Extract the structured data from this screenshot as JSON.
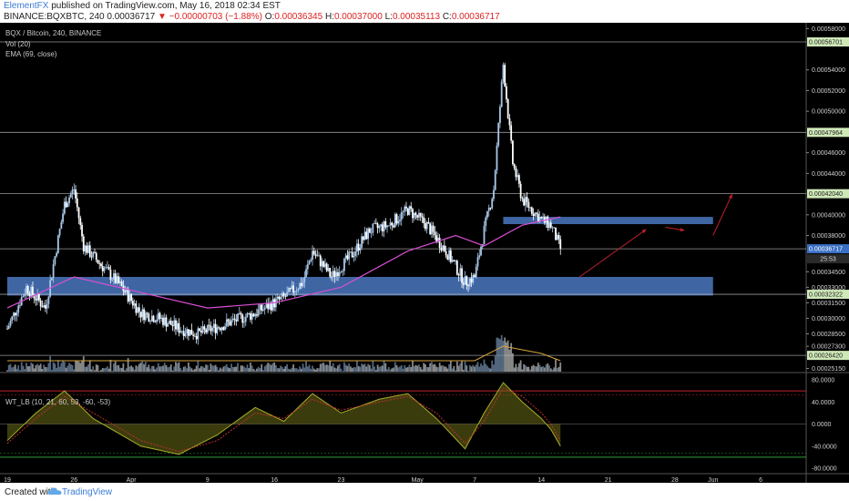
{
  "header": {
    "author": "ElementFX",
    "published": "published on TradingView.com, May 16, 2018 02:34 EST",
    "symbol": "BINANCE:BQXBTC, 240",
    "last": "0.00036717",
    "change": "−0.00000703 (−1.88%)",
    "ohlc": {
      "o_label": "O:",
      "o": "0.00036345",
      "h_label": "H:",
      "h": "0.00037000",
      "l_label": "L:",
      "l": "0.00035113",
      "c_label": "C:",
      "c": "0.00036717"
    }
  },
  "legend": {
    "title": "BQX / Bitcoin, 240, BINANCE",
    "vol": "Vol (20)",
    "ema": "EMA (69, close)",
    "osc": "WT_LB (10, 21, 60, 53, -60, -53)"
  },
  "footer": {
    "created": "Created with",
    "brand": "TradingView"
  },
  "colors": {
    "up": "#a9c8ea",
    "down": "#ffffff",
    "ema": "#d84fd1",
    "zone": "#4a78bf",
    "hline": "#bdbdbd",
    "arrow": "#c0212a",
    "wt1": "#8a8f1f",
    "wt2": "#c0312a",
    "ob": "#c0212a",
    "os": "#2e9d3a"
  },
  "chart_data": {
    "type": "candlestick",
    "title": "BQX / Bitcoin, 240, BINANCE",
    "yticks": [
      "0.00058000",
      "0.00056701",
      "0.00054000",
      "0.00052000",
      "0.00050000",
      "0.00047964",
      "0.00046000",
      "0.00044000",
      "0.00042040",
      "0.00040000",
      "0.00038000",
      "0.00036717",
      "0.00034500",
      "0.00033000",
      "0.00032322",
      "0.00031500",
      "0.00030000",
      "0.00028500",
      "0.00027300",
      "0.00026420",
      "0.00025150"
    ],
    "ylim": [
      0.000252,
      0.000582
    ],
    "xticks": [
      "19",
      "26",
      "Apr",
      "9",
      "16",
      "23",
      "May",
      "7",
      "14",
      "21",
      "28",
      "Jun",
      "6"
    ],
    "date_range": [
      "2018-03-19",
      "2018-06-10"
    ],
    "horizontal_levels": [
      "0.00056701",
      "0.00047964",
      "0.00042040",
      "0.00036717",
      "0.00032322",
      "0.00026420"
    ],
    "price_labels": [
      "0.00056701",
      "0.00047964",
      "0.00042040",
      "0.00036717",
      "25:53",
      "0.00032322",
      "0.00026420"
    ],
    "series": [
      {
        "name": "close",
        "path": [
          [
            "2018-03-19",
            0.00029
          ],
          [
            "2018-03-21",
            0.00033
          ],
          [
            "2018-03-23",
            0.00031
          ],
          [
            "2018-03-25",
            0.00041
          ],
          [
            "2018-03-26",
            0.000425
          ],
          [
            "2018-03-27",
            0.00037
          ],
          [
            "2018-03-29",
            0.00035
          ],
          [
            "2018-03-31",
            0.00033
          ],
          [
            "2018-04-02",
            0.000305
          ],
          [
            "2018-04-04",
            0.0003
          ],
          [
            "2018-04-06",
            0.00029
          ],
          [
            "2018-04-08",
            0.000285
          ],
          [
            "2018-04-11",
            0.000295
          ],
          [
            "2018-04-14",
            0.000305
          ],
          [
            "2018-04-17",
            0.00032
          ],
          [
            "2018-04-19",
            0.000335
          ],
          [
            "2018-04-20",
            0.000365
          ],
          [
            "2018-04-22",
            0.00034
          ],
          [
            "2018-04-24",
            0.00036
          ],
          [
            "2018-04-26",
            0.000385
          ],
          [
            "2018-04-28",
            0.00039
          ],
          [
            "2018-04-30",
            0.000405
          ],
          [
            "2018-05-02",
            0.00039
          ],
          [
            "2018-05-04",
            0.000365
          ],
          [
            "2018-05-06",
            0.000335
          ],
          [
            "2018-05-07",
            0.00034
          ],
          [
            "2018-05-08",
            0.000385
          ],
          [
            "2018-05-09",
            0.000425
          ],
          [
            "2018-05-10",
            0.000545
          ],
          [
            "2018-05-11",
            0.00045
          ],
          [
            "2018-05-12",
            0.000415
          ],
          [
            "2018-05-13",
            0.000405
          ],
          [
            "2018-05-14",
            0.000395
          ],
          [
            "2018-05-15",
            0.00039
          ],
          [
            "2018-05-16",
            0.00036717
          ]
        ]
      },
      {
        "name": "EMA (69, close)",
        "path": [
          [
            "2018-03-19",
            0.00031
          ],
          [
            "2018-03-26",
            0.00034
          ],
          [
            "2018-04-02",
            0.000325
          ],
          [
            "2018-04-09",
            0.00031
          ],
          [
            "2018-04-16",
            0.000315
          ],
          [
            "2018-04-23",
            0.00033
          ],
          [
            "2018-04-30",
            0.000365
          ],
          [
            "2018-05-05",
            0.00038
          ],
          [
            "2018-05-08",
            0.00037
          ],
          [
            "2018-05-12",
            0.00039
          ],
          [
            "2018-05-16",
            0.000398
          ]
        ]
      }
    ],
    "zones": [
      {
        "from": "2018-03-19",
        "to": "2018-06-01",
        "y": [
          0.000322,
          0.00034
        ]
      },
      {
        "from": "2018-05-10",
        "to": "2018-06-01",
        "y": [
          0.000391,
          0.000398
        ]
      }
    ],
    "projection_arrows": [
      [
        [
          "2018-05-18",
          0.00034
        ],
        [
          "2018-05-25",
          0.000386
        ]
      ],
      [
        [
          "2018-05-27",
          0.000388
        ],
        [
          "2018-05-29",
          0.000385
        ]
      ],
      [
        [
          "2018-06-01",
          0.00038
        ],
        [
          "2018-06-03",
          0.00042
        ]
      ]
    ],
    "volume": {
      "name": "Vol (20)"
    },
    "oscillator": {
      "name": "WT_LB (10, 21, 60, 53, -60, -53)",
      "yticks": [
        "80.0000",
        "40.0000",
        "0.0000",
        "-40.0000",
        "-80.0000"
      ],
      "ylim": [
        -80,
        80
      ],
      "levels": [
        60,
        53,
        -53,
        -60
      ],
      "series": [
        {
          "name": "wt1",
          "path": [
            [
              "2018-03-19",
              -30
            ],
            [
              "2018-03-22",
              20
            ],
            [
              "2018-03-25",
              60
            ],
            [
              "2018-03-28",
              10
            ],
            [
              "2018-04-02",
              -40
            ],
            [
              "2018-04-06",
              -55
            ],
            [
              "2018-04-10",
              -20
            ],
            [
              "2018-04-14",
              30
            ],
            [
              "2018-04-17",
              5
            ],
            [
              "2018-04-20",
              55
            ],
            [
              "2018-04-23",
              20
            ],
            [
              "2018-04-27",
              45
            ],
            [
              "2018-04-30",
              55
            ],
            [
              "2018-05-03",
              10
            ],
            [
              "2018-05-06",
              -45
            ],
            [
              "2018-05-08",
              20
            ],
            [
              "2018-05-10",
              75
            ],
            [
              "2018-05-12",
              40
            ],
            [
              "2018-05-14",
              10
            ],
            [
              "2018-05-15",
              -10
            ],
            [
              "2018-05-16",
              -40
            ]
          ]
        },
        {
          "name": "wt2",
          "path": [
            [
              "2018-03-19",
              -35
            ],
            [
              "2018-03-22",
              10
            ],
            [
              "2018-03-25",
              50
            ],
            [
              "2018-03-28",
              20
            ],
            [
              "2018-04-02",
              -30
            ],
            [
              "2018-04-06",
              -50
            ],
            [
              "2018-04-10",
              -30
            ],
            [
              "2018-04-14",
              20
            ],
            [
              "2018-04-17",
              10
            ],
            [
              "2018-04-20",
              45
            ],
            [
              "2018-04-23",
              25
            ],
            [
              "2018-04-27",
              40
            ],
            [
              "2018-04-30",
              50
            ],
            [
              "2018-05-03",
              20
            ],
            [
              "2018-05-06",
              -35
            ],
            [
              "2018-05-08",
              5
            ],
            [
              "2018-05-10",
              65
            ],
            [
              "2018-05-12",
              50
            ],
            [
              "2018-05-14",
              20
            ],
            [
              "2018-05-15",
              0
            ],
            [
              "2018-05-16",
              -30
            ]
          ]
        }
      ]
    }
  }
}
